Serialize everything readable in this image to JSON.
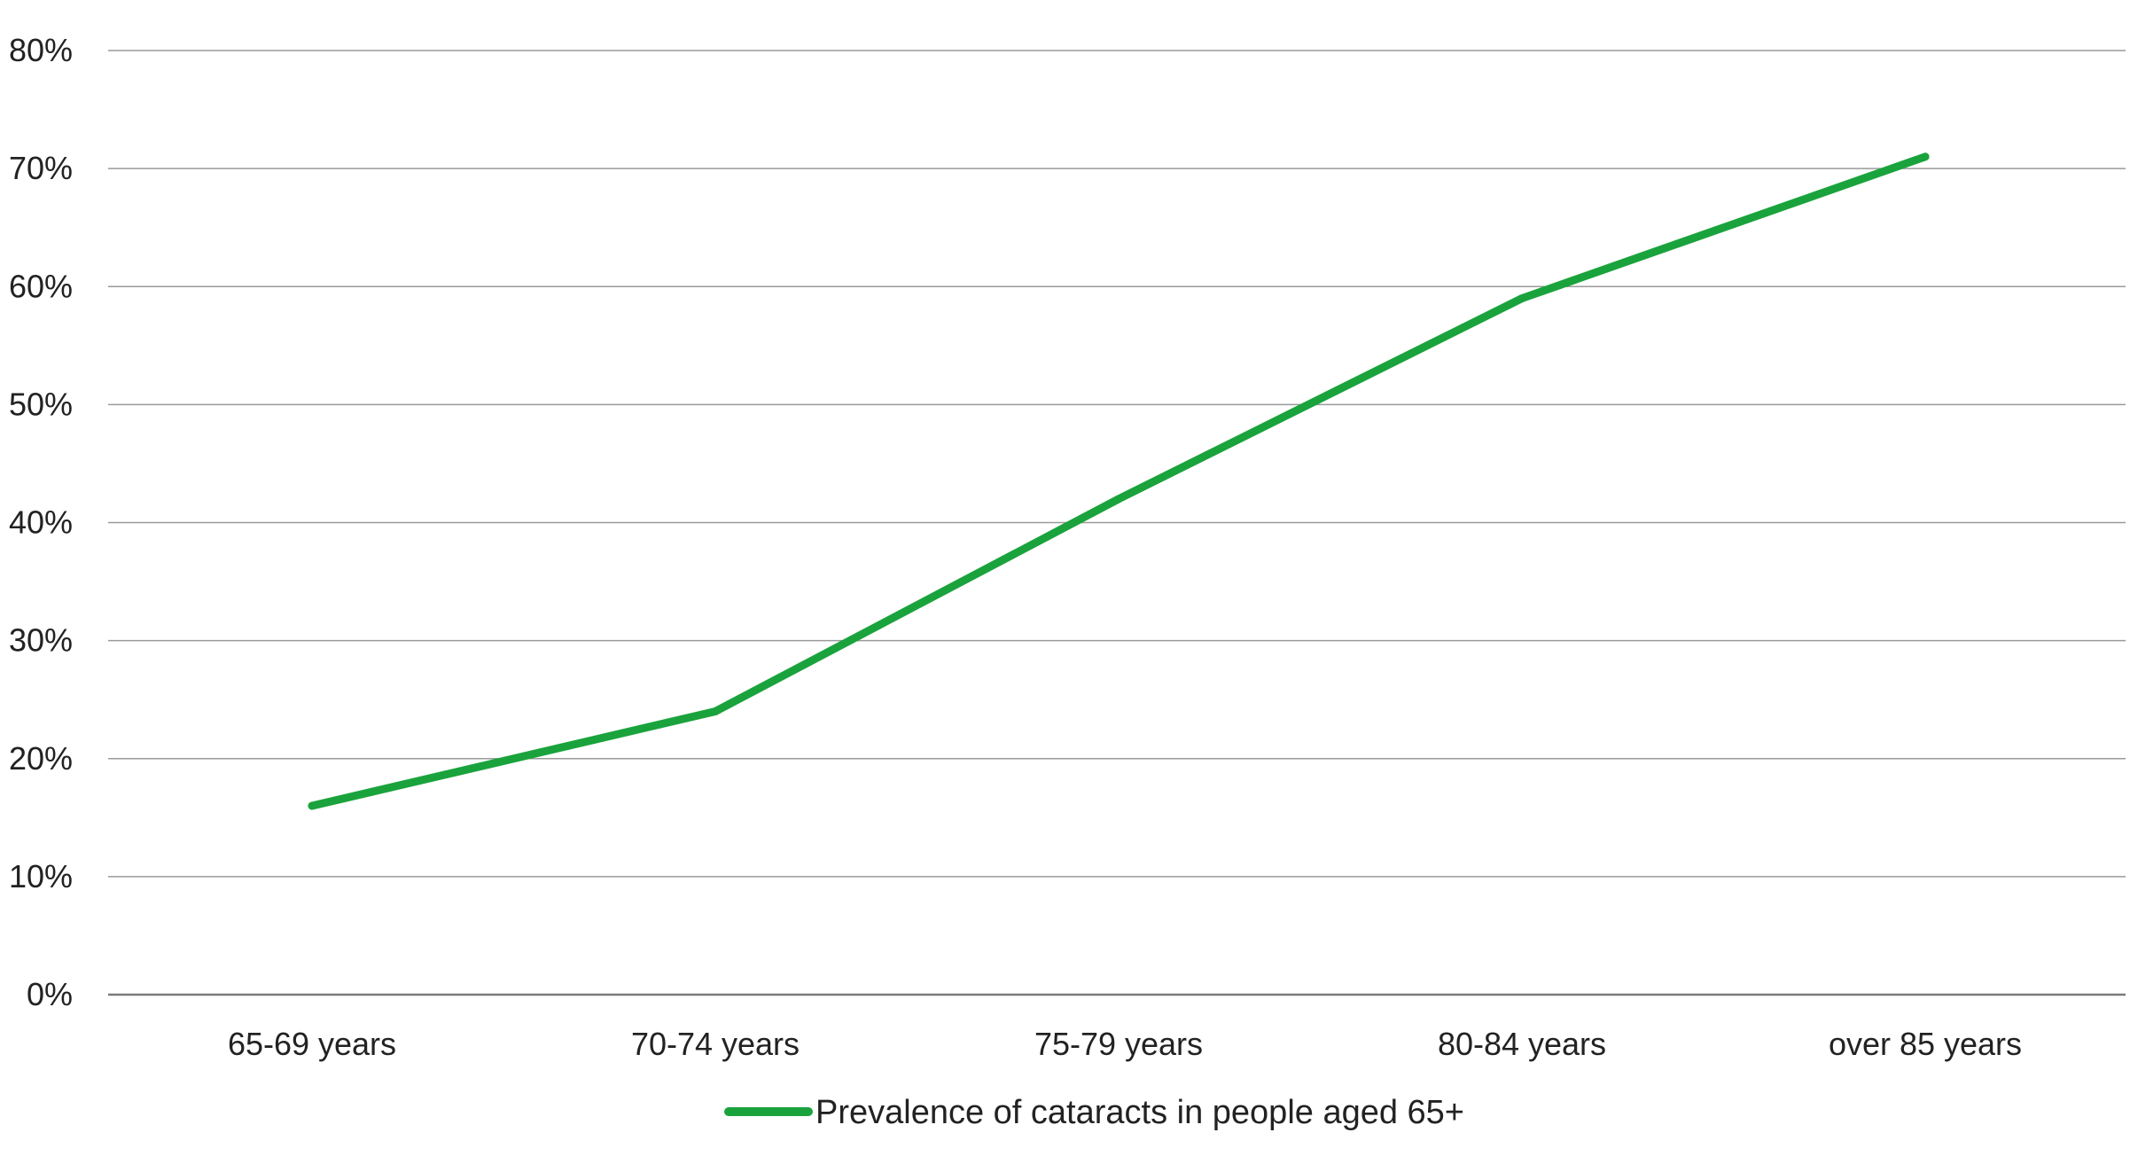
{
  "chart_data": {
    "type": "line",
    "title": "",
    "xlabel": "",
    "ylabel": "",
    "categories": [
      "65-69 years",
      "70-74 years",
      "75-79 years",
      "80-84 years",
      "over 85 years"
    ],
    "series": [
      {
        "name": "Prevalence of cataracts in people aged 65+",
        "values": [
          16,
          24,
          42,
          59,
          71
        ],
        "color": "#1aa33c"
      }
    ],
    "ylim": [
      0,
      80
    ],
    "yticks": [
      0,
      10,
      20,
      30,
      40,
      50,
      60,
      70,
      80
    ],
    "ytick_labels": [
      "0%",
      "10%",
      "20%",
      "30%",
      "40%",
      "50%",
      "60%",
      "70%",
      "80%"
    ],
    "grid": true,
    "legend_position": "bottom-center"
  }
}
